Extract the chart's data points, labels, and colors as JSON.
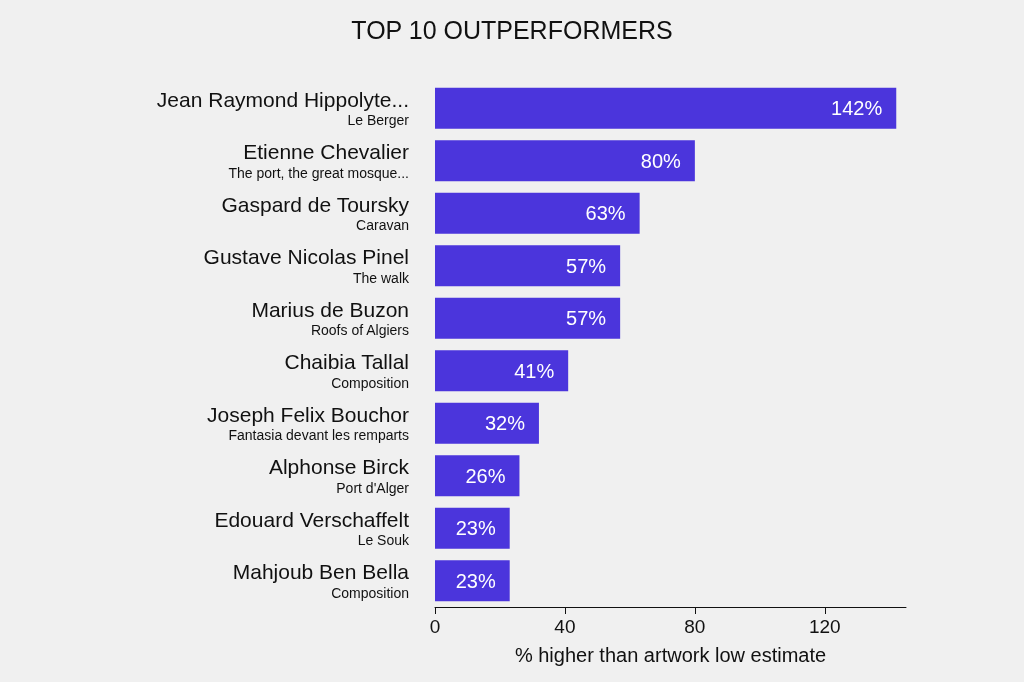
{
  "chart_data": {
    "type": "bar",
    "orientation": "horizontal",
    "title": "TOP 10 OUTPERFORMERS",
    "xlabel": "% higher than artwork low estimate",
    "categories": [
      "Jean Raymond Hippolyte...\nLe Berger",
      "Etienne Chevalier\nThe port, the great mosque...",
      "Gaspard de Toursky\nCaravan",
      "Gustave Nicolas Pinel\nThe walk",
      "Marius de Buzon\nRoofs of Algiers",
      "Chaibia Tallal\nComposition",
      "Joseph Felix Bouchor\nFantasia devant les remparts",
      "Alphonse Birck\nPort d'Alger",
      "Edouard Verschaffelt\nLe Souk",
      "Mahjoub Ben Bella\nComposition"
    ],
    "values": [
      142,
      80,
      63,
      57,
      57,
      41,
      32,
      26,
      23,
      23
    ],
    "value_labels": [
      "142%",
      "80%",
      "63%",
      "57%",
      "57%",
      "41%",
      "32%",
      "26%",
      "23%",
      "23%"
    ],
    "color": "#4b35dc",
    "xlim": [
      0,
      145
    ],
    "xticks": [
      0,
      40,
      80,
      120
    ]
  }
}
